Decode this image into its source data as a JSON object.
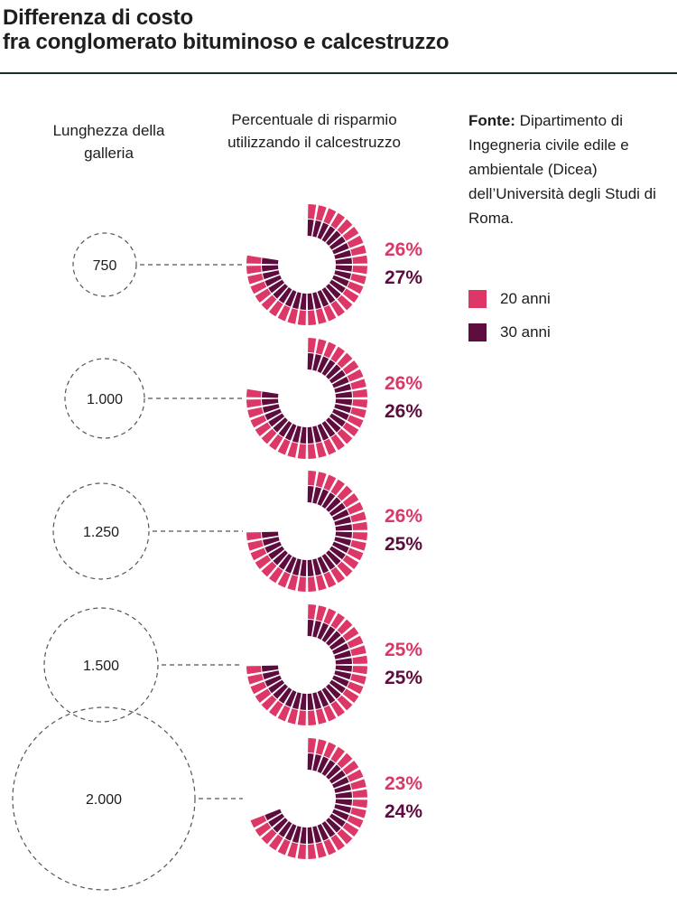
{
  "title_line1": "Differenza di costo",
  "title_line2": "fra conglomerato bituminoso e calcestruzzo",
  "columns": {
    "length_header": "Lunghezza della galleria",
    "savings_header": "Percentuale di risparmio utilizzando il calcestruzzo"
  },
  "source": {
    "label": "Fonte:",
    "text": "Dipartimento di Ingegneria civile edile e ambientale (Dicea) dell’Università degli Studi di Roma."
  },
  "colors": {
    "anni20": "#dc3767",
    "anni30": "#5e0b3e"
  },
  "chart_data": {
    "type": "radial-bar",
    "categories": [
      "750",
      "1.000",
      "1.250",
      "1.500",
      "2.000"
    ],
    "category_axis_label": "Lunghezza della galleria",
    "value_axis_label": "Percentuale di risparmio utilizzando il calcestruzzo",
    "series": [
      {
        "name": "20 anni",
        "values": [
          26,
          26,
          26,
          25,
          23
        ],
        "labels": [
          "26%",
          "26%",
          "26%",
          "25%",
          "23%"
        ]
      },
      {
        "name": "30 anni",
        "values": [
          27,
          26,
          25,
          25,
          24
        ],
        "labels": [
          "27%",
          "26%",
          "25%",
          "25%",
          "24%"
        ]
      }
    ]
  }
}
